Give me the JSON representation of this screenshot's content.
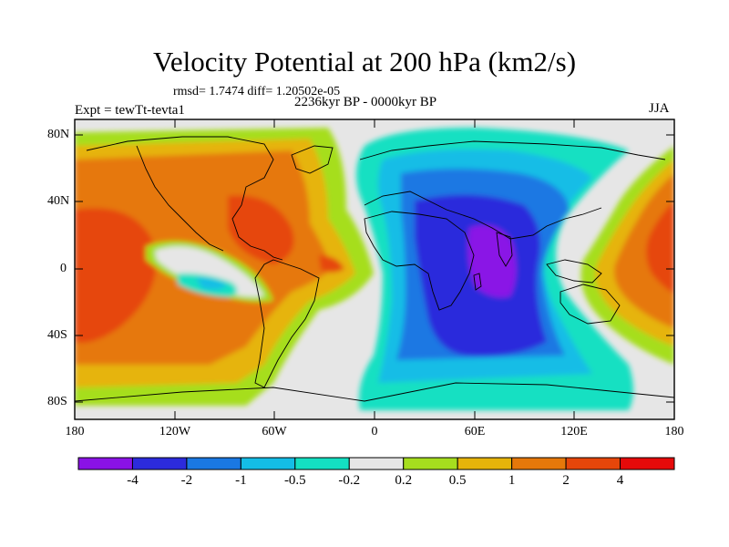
{
  "title": "Velocity Potential at 200 hPa (km2/s)",
  "stats_text": "rmsd= 1.7474 diff= 1.20502e-05",
  "experiment_label": "Expt = tewTt-tevta1",
  "period_label": "2236kyr BP - 0000kyr BP",
  "season_label": "JJA",
  "lat_labels": [
    "80N",
    "40N",
    "0",
    "40S",
    "80S"
  ],
  "lon_labels": [
    "180",
    "120W",
    "60W",
    "0",
    "60E",
    "120E",
    "180"
  ],
  "colorbar": {
    "labels": [
      "-4",
      "-2",
      "-1",
      "-0.5",
      "-0.2",
      "0.2",
      "0.5",
      "1",
      "2",
      "4"
    ],
    "colors": [
      "#8a12e6",
      "#2c2bdc",
      "#1a78e3",
      "#14bde6",
      "#14e0c2",
      "#e6e6e6",
      "#a6de1e",
      "#e6b40a",
      "#e6780a",
      "#e6460a",
      "#e60a0a"
    ]
  },
  "colors": {
    "land_outline": "#000000",
    "ocean_neutral": "#e6e6e6"
  }
}
